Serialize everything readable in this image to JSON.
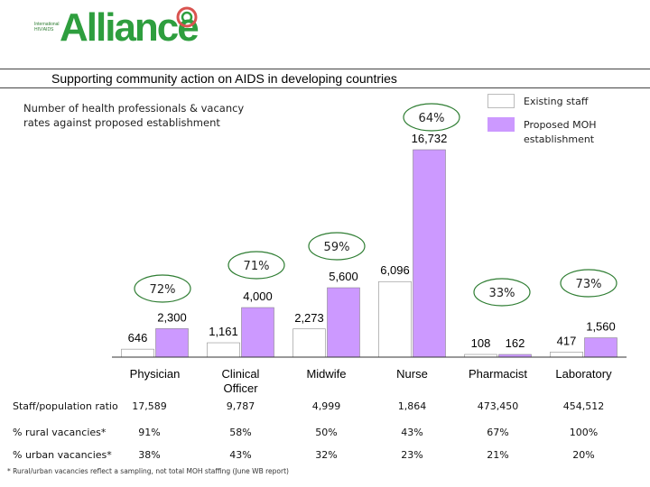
{
  "header": {
    "logo_small_text": "International HIV/AIDS",
    "logo_text": "Alliance",
    "tagline": "Supporting community action on AIDS in developing countries"
  },
  "colors": {
    "existing": "#ffffff",
    "proposed": "#cc99ff",
    "ellipse_border": "#2e7d32",
    "logo_green": "#2e9e3e",
    "logo_red": "#d9534f"
  },
  "chart_data": {
    "type": "bar",
    "title": "Number of health professionals & vacancy rates against proposed establishment",
    "categories": [
      "Physician",
      "Clinical Officer",
      "Midwife",
      "Nurse",
      "Pharmacist",
      "Laboratory"
    ],
    "series": [
      {
        "name": "Existing staff",
        "values": [
          646,
          1161,
          2273,
          6096,
          108,
          417
        ]
      },
      {
        "name": "Proposed MOH establishment",
        "values": [
          2300,
          4000,
          5600,
          16732,
          162,
          1560
        ]
      }
    ],
    "value_labels": {
      "existing": [
        "646",
        "1,161",
        "2,273",
        "6,096",
        "108",
        "417"
      ],
      "proposed": [
        "2,300",
        "4,000",
        "5,600",
        "16,732",
        "162",
        "1,560"
      ]
    },
    "vacancy_rates": [
      "72%",
      "71%",
      "59%",
      "64%",
      "33%",
      "73%"
    ],
    "legend": [
      "Existing staff",
      "Proposed MOH establishment"
    ],
    "legend_position": "top-right"
  },
  "table": {
    "rows": [
      {
        "label": "Staff/population ratio",
        "values": [
          "17,589",
          "9,787",
          "4,999",
          "1,864",
          "473,450",
          "454,512"
        ]
      },
      {
        "label": "% rural vacancies*",
        "values": [
          "91%",
          "58%",
          "50%",
          "43%",
          "67%",
          "100%"
        ]
      },
      {
        "label": "% urban vacancies*",
        "values": [
          "38%",
          "43%",
          "32%",
          "23%",
          "21%",
          "20%"
        ]
      }
    ]
  },
  "footnote": "* Rural/urban vacancies reflect a sampling, not total MOH staffing (June WB report)"
}
